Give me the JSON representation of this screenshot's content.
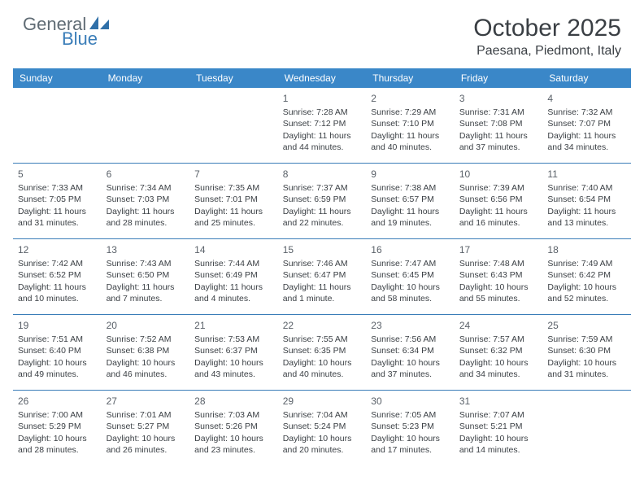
{
  "brand": {
    "name1": "General",
    "name2": "Blue",
    "brand_color": "#3a87c8",
    "text_color": "#5f6b74"
  },
  "title": {
    "month": "October 2025",
    "location": "Paesana, Piedmont, Italy"
  },
  "day_names": [
    "Sunday",
    "Monday",
    "Tuesday",
    "Wednesday",
    "Thursday",
    "Friday",
    "Saturday"
  ],
  "header_bg": "#3a87c8",
  "header_fg": "#ffffff",
  "rule_color": "#3a7db8",
  "weeks": [
    [
      null,
      null,
      null,
      {
        "d": "1",
        "sunrise": "7:28 AM",
        "sunset": "7:12 PM",
        "daylight": "11 hours and 44 minutes."
      },
      {
        "d": "2",
        "sunrise": "7:29 AM",
        "sunset": "7:10 PM",
        "daylight": "11 hours and 40 minutes."
      },
      {
        "d": "3",
        "sunrise": "7:31 AM",
        "sunset": "7:08 PM",
        "daylight": "11 hours and 37 minutes."
      },
      {
        "d": "4",
        "sunrise": "7:32 AM",
        "sunset": "7:07 PM",
        "daylight": "11 hours and 34 minutes."
      }
    ],
    [
      {
        "d": "5",
        "sunrise": "7:33 AM",
        "sunset": "7:05 PM",
        "daylight": "11 hours and 31 minutes."
      },
      {
        "d": "6",
        "sunrise": "7:34 AM",
        "sunset": "7:03 PM",
        "daylight": "11 hours and 28 minutes."
      },
      {
        "d": "7",
        "sunrise": "7:35 AM",
        "sunset": "7:01 PM",
        "daylight": "11 hours and 25 minutes."
      },
      {
        "d": "8",
        "sunrise": "7:37 AM",
        "sunset": "6:59 PM",
        "daylight": "11 hours and 22 minutes."
      },
      {
        "d": "9",
        "sunrise": "7:38 AM",
        "sunset": "6:57 PM",
        "daylight": "11 hours and 19 minutes."
      },
      {
        "d": "10",
        "sunrise": "7:39 AM",
        "sunset": "6:56 PM",
        "daylight": "11 hours and 16 minutes."
      },
      {
        "d": "11",
        "sunrise": "7:40 AM",
        "sunset": "6:54 PM",
        "daylight": "11 hours and 13 minutes."
      }
    ],
    [
      {
        "d": "12",
        "sunrise": "7:42 AM",
        "sunset": "6:52 PM",
        "daylight": "11 hours and 10 minutes."
      },
      {
        "d": "13",
        "sunrise": "7:43 AM",
        "sunset": "6:50 PM",
        "daylight": "11 hours and 7 minutes."
      },
      {
        "d": "14",
        "sunrise": "7:44 AM",
        "sunset": "6:49 PM",
        "daylight": "11 hours and 4 minutes."
      },
      {
        "d": "15",
        "sunrise": "7:46 AM",
        "sunset": "6:47 PM",
        "daylight": "11 hours and 1 minute."
      },
      {
        "d": "16",
        "sunrise": "7:47 AM",
        "sunset": "6:45 PM",
        "daylight": "10 hours and 58 minutes."
      },
      {
        "d": "17",
        "sunrise": "7:48 AM",
        "sunset": "6:43 PM",
        "daylight": "10 hours and 55 minutes."
      },
      {
        "d": "18",
        "sunrise": "7:49 AM",
        "sunset": "6:42 PM",
        "daylight": "10 hours and 52 minutes."
      }
    ],
    [
      {
        "d": "19",
        "sunrise": "7:51 AM",
        "sunset": "6:40 PM",
        "daylight": "10 hours and 49 minutes."
      },
      {
        "d": "20",
        "sunrise": "7:52 AM",
        "sunset": "6:38 PM",
        "daylight": "10 hours and 46 minutes."
      },
      {
        "d": "21",
        "sunrise": "7:53 AM",
        "sunset": "6:37 PM",
        "daylight": "10 hours and 43 minutes."
      },
      {
        "d": "22",
        "sunrise": "7:55 AM",
        "sunset": "6:35 PM",
        "daylight": "10 hours and 40 minutes."
      },
      {
        "d": "23",
        "sunrise": "7:56 AM",
        "sunset": "6:34 PM",
        "daylight": "10 hours and 37 minutes."
      },
      {
        "d": "24",
        "sunrise": "7:57 AM",
        "sunset": "6:32 PM",
        "daylight": "10 hours and 34 minutes."
      },
      {
        "d": "25",
        "sunrise": "7:59 AM",
        "sunset": "6:30 PM",
        "daylight": "10 hours and 31 minutes."
      }
    ],
    [
      {
        "d": "26",
        "sunrise": "7:00 AM",
        "sunset": "5:29 PM",
        "daylight": "10 hours and 28 minutes."
      },
      {
        "d": "27",
        "sunrise": "7:01 AM",
        "sunset": "5:27 PM",
        "daylight": "10 hours and 26 minutes."
      },
      {
        "d": "28",
        "sunrise": "7:03 AM",
        "sunset": "5:26 PM",
        "daylight": "10 hours and 23 minutes."
      },
      {
        "d": "29",
        "sunrise": "7:04 AM",
        "sunset": "5:24 PM",
        "daylight": "10 hours and 20 minutes."
      },
      {
        "d": "30",
        "sunrise": "7:05 AM",
        "sunset": "5:23 PM",
        "daylight": "10 hours and 17 minutes."
      },
      {
        "d": "31",
        "sunrise": "7:07 AM",
        "sunset": "5:21 PM",
        "daylight": "10 hours and 14 minutes."
      },
      null
    ]
  ],
  "labels": {
    "sunrise": "Sunrise:",
    "sunset": "Sunset:",
    "daylight": "Daylight:"
  }
}
